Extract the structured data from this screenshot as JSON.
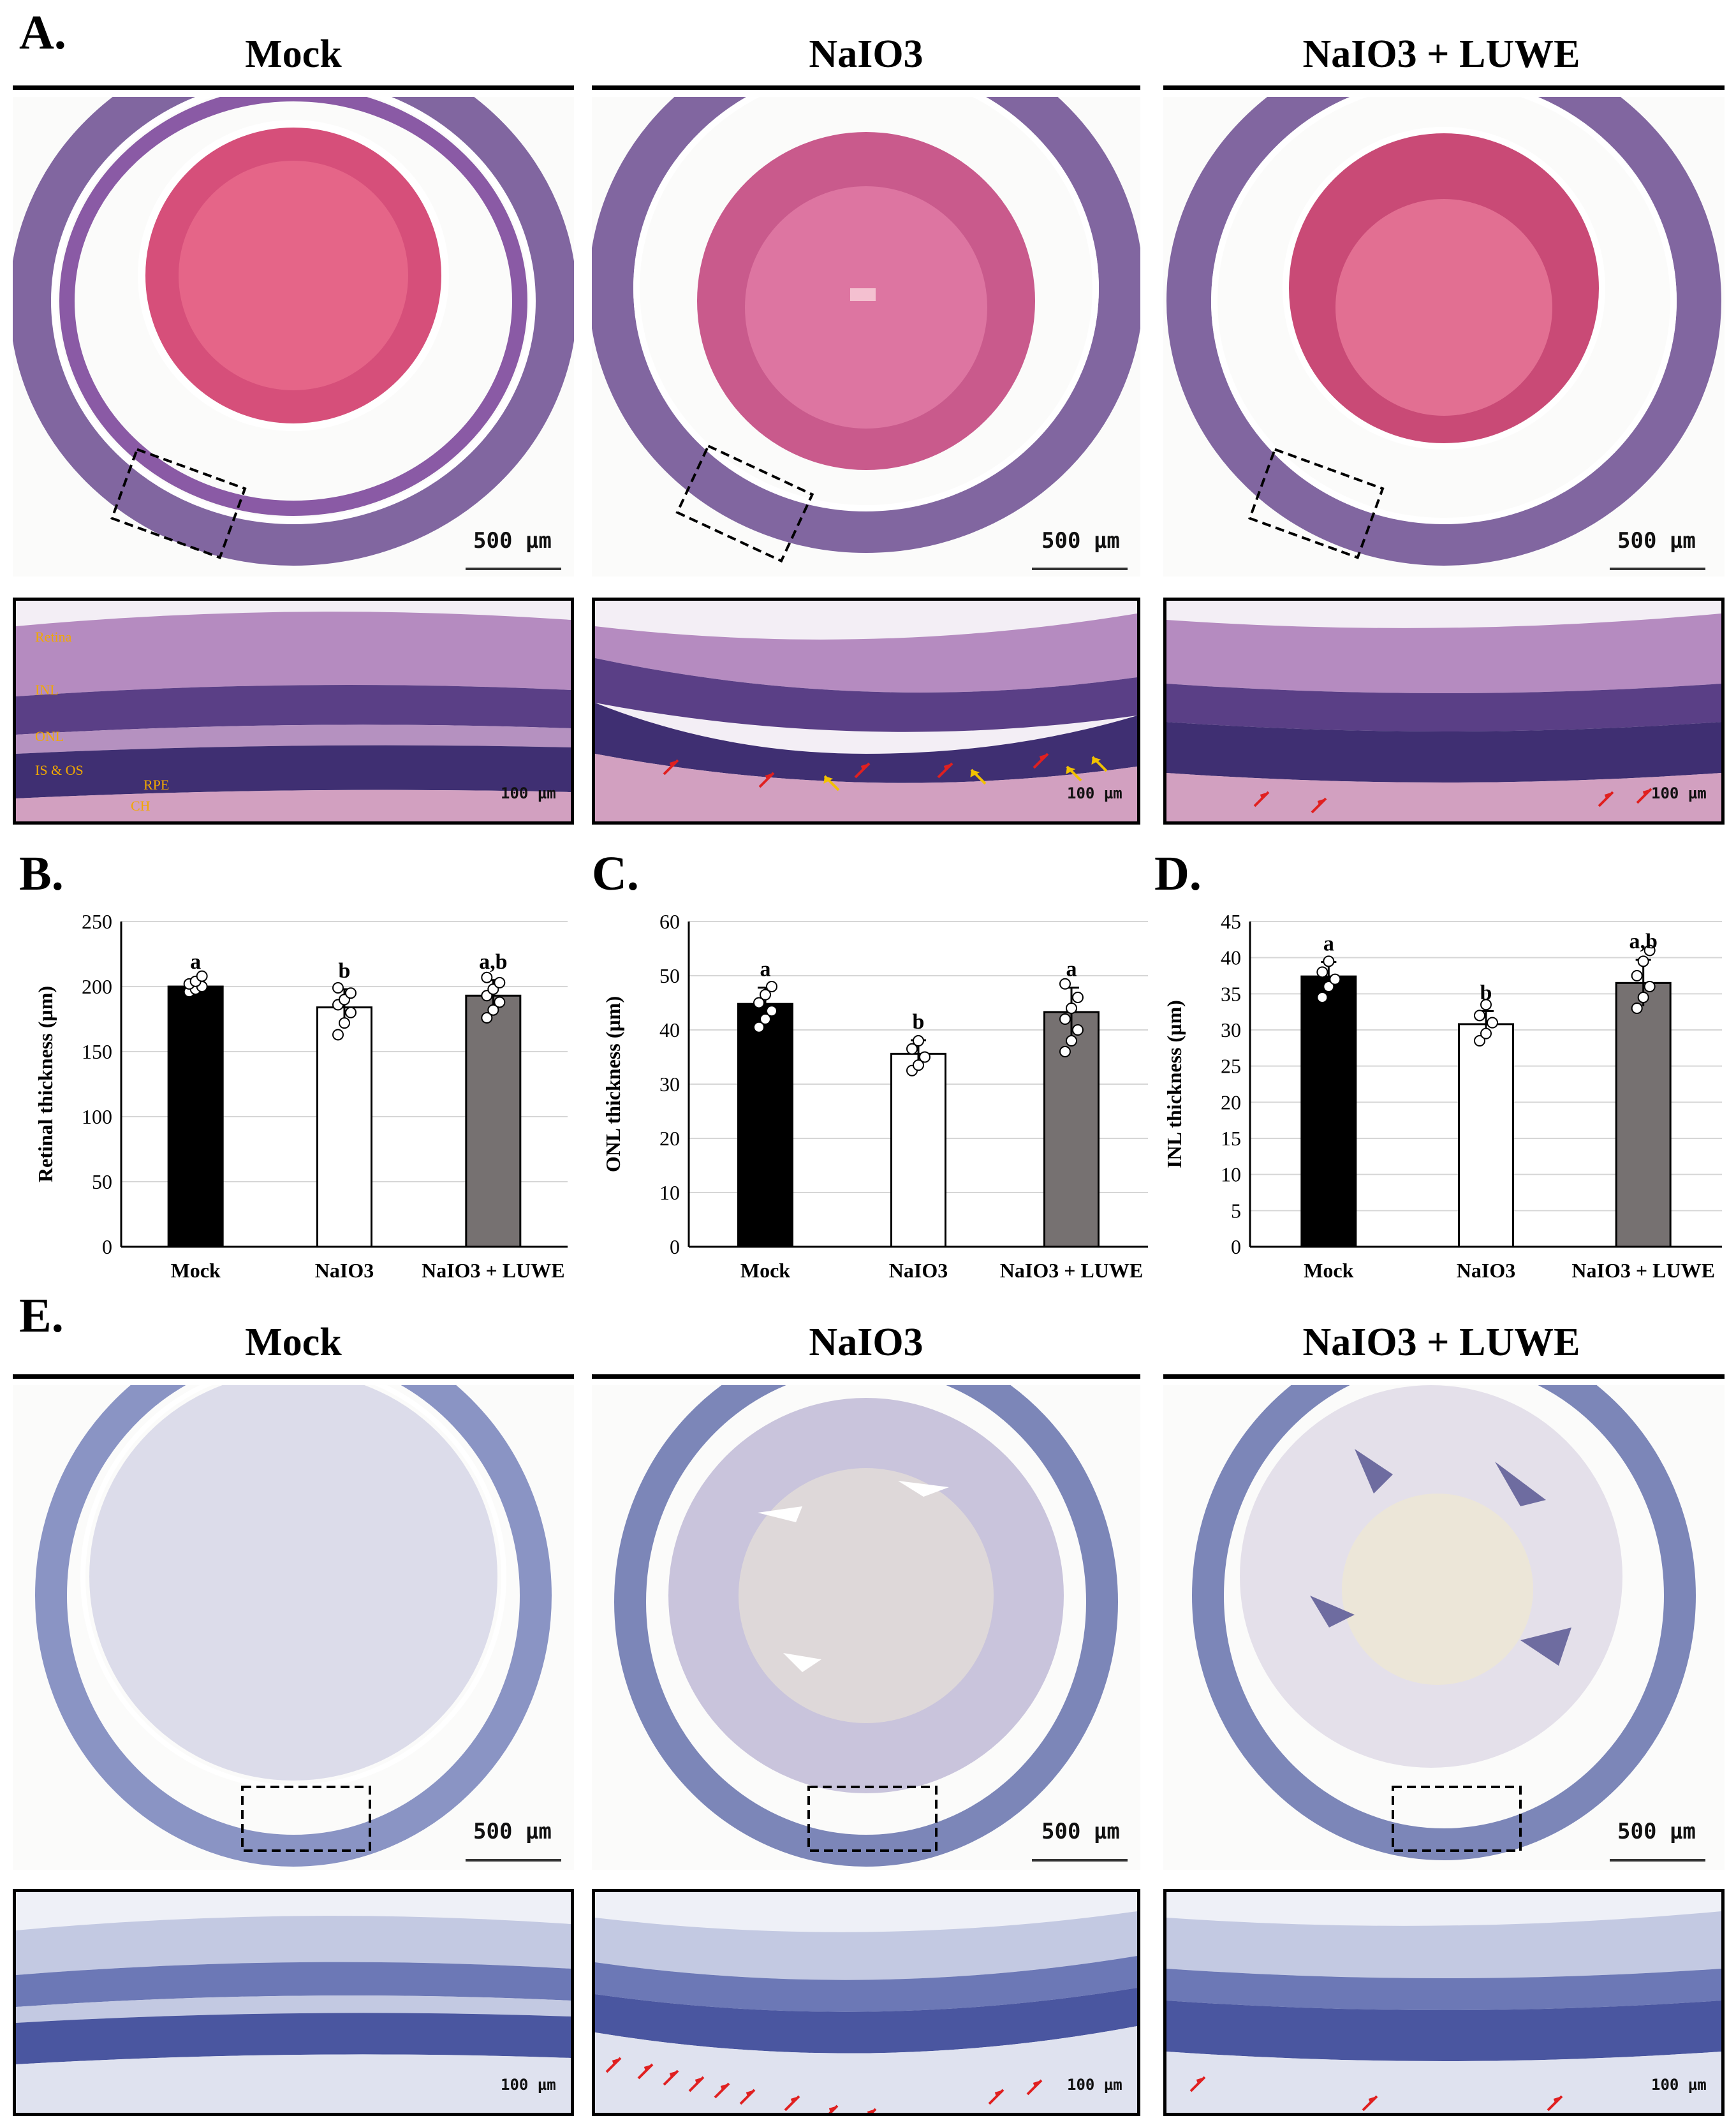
{
  "panelA": {
    "letter": "A.",
    "titles": [
      "Mock",
      "NaIO3",
      "NaIO3 + LUWE"
    ],
    "scale_overview": "500 µm",
    "scale_zoom": "100 µm",
    "layer_labels": [
      "Retina",
      "INL",
      "ONL",
      "IS & OS",
      "RPE",
      "CH"
    ]
  },
  "panelE": {
    "letter": "E.",
    "titles": [
      "Mock",
      "NaIO3",
      "NaIO3 + LUWE"
    ],
    "scale_overview": "500 µm",
    "scale_zoom": "100 µm"
  },
  "colors": {
    "he_tissue": "#6b4b8f",
    "he_lens": "#e0567a",
    "ihc_tissue": "#7c86b8",
    "ihc_lens": "#dcdcea",
    "arrow_red": "#e02020",
    "arrow_yellow": "#f2c200",
    "bar_mock": "#000000",
    "bar_naio3": "#ffffff",
    "bar_luwe": "#767171"
  },
  "chart_data": [
    {
      "type": "bar",
      "letter": "B.",
      "categories": [
        "Mock",
        "NaIO3",
        "NaIO3 + LUWE"
      ],
      "values": [
        200,
        184,
        193
      ],
      "errors": [
        5,
        14,
        12
      ],
      "letters": [
        "a",
        "b",
        "a,b"
      ],
      "ylabel": "Retinal thickness (µm)",
      "ylim": [
        0,
        250
      ],
      "yticks": [
        0,
        50,
        100,
        150,
        200,
        250
      ],
      "points": [
        [
          196,
          198,
          200,
          202,
          204,
          208
        ],
        [
          163,
          172,
          180,
          186,
          190,
          195,
          199
        ],
        [
          176,
          182,
          188,
          193,
          198,
          203,
          207
        ]
      ]
    },
    {
      "type": "bar",
      "letter": "C.",
      "categories": [
        "Mock",
        "NaIO3",
        "NaIO3 + LUWE"
      ],
      "values": [
        44.8,
        35.6,
        43.3
      ],
      "errors": [
        3,
        2.5,
        4.5
      ],
      "letters": [
        "a",
        "b",
        "a"
      ],
      "ylabel": "ONL thickness (µm)",
      "ylim": [
        0,
        60
      ],
      "yticks": [
        0,
        10,
        20,
        30,
        40,
        50,
        60
      ],
      "points": [
        [
          40.5,
          42,
          43.5,
          45,
          46.5,
          48
        ],
        [
          32.5,
          33.5,
          35,
          36.5,
          38
        ],
        [
          36,
          38,
          40,
          42,
          44,
          46,
          48.5
        ]
      ]
    },
    {
      "type": "bar",
      "letter": "D.",
      "categories": [
        "Mock",
        "NaIO3",
        "NaIO3 + LUWE"
      ],
      "values": [
        37.4,
        30.8,
        36.5
      ],
      "errors": [
        2,
        1.8,
        3.2
      ],
      "letters": [
        "a",
        "b",
        "a,b"
      ],
      "ylabel": "INL thickness (µm)",
      "ylim": [
        0,
        45
      ],
      "yticks": [
        0,
        5,
        10,
        15,
        20,
        25,
        30,
        35,
        40,
        45
      ],
      "points": [
        [
          34.5,
          36,
          37,
          38,
          39.5
        ],
        [
          28.5,
          29.5,
          31,
          32,
          33.5
        ],
        [
          33,
          34.5,
          36,
          37.5,
          39.5,
          41
        ]
      ]
    }
  ]
}
